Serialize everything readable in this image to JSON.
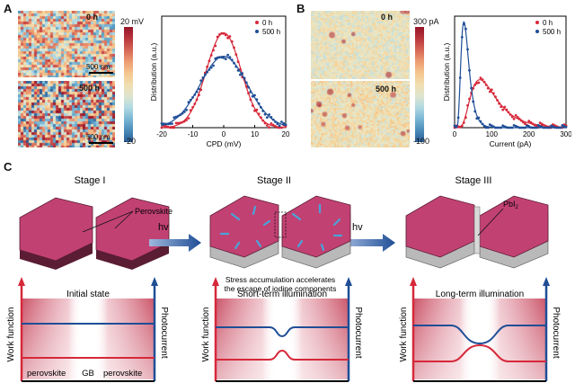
{
  "panels": {
    "a": "A",
    "b": "B",
    "c": "C"
  },
  "panelA": {
    "map_top_time": "0 h",
    "map_bottom_time": "500 h",
    "scalebar_top": "500 nm",
    "scalebar_bottom": "500 nm",
    "colorbar_max": "20 mV",
    "colorbar_min": "-20"
  },
  "panelB": {
    "map_top_time": "0 h",
    "map_bottom_time": "500 h",
    "colorbar_max": "300 pA",
    "colorbar_min": "-100"
  },
  "colors": {
    "red": "#d62839",
    "blue": "#1f4e96",
    "hex_top": "#c24173",
    "hex_side": "#5a1d33",
    "hex_base": "#b9b9b9"
  },
  "chart_data": [
    {
      "type": "scatter",
      "xlabel": "CPD (mV)",
      "ylabel": "Distribution (a.u.)",
      "xlim": [
        -20,
        20
      ],
      "ylim": [
        0,
        1
      ],
      "xticks": [
        "-20",
        "-10",
        "0",
        "10",
        "20"
      ],
      "legend_position": "top-right",
      "series": [
        {
          "name": "0 h",
          "color": "#d62839",
          "fit": "gaussian",
          "mean": 0,
          "sigma": 5.6,
          "amplitude": 0.85
        },
        {
          "name": "500 h",
          "color": "#1f4e96",
          "fit": "gaussian",
          "mean": 0,
          "sigma": 7.6,
          "amplitude": 0.64
        }
      ]
    },
    {
      "type": "scatter",
      "xlabel": "Current (pA)",
      "ylabel": "Distribution (a.u.)",
      "xlim": [
        0,
        300
      ],
      "ylim": [
        0,
        1
      ],
      "xticks": [
        "0",
        "100",
        "200",
        "300"
      ],
      "legend_position": "top-right",
      "series": [
        {
          "name": "0 h",
          "color": "#d62839",
          "fit": "lognormal",
          "mode": 68,
          "sigma": 0.5,
          "amplitude": 0.43
        },
        {
          "name": "500 h",
          "color": "#1f4e96",
          "fit": "lognormal",
          "mode": 25,
          "sigma": 0.42,
          "amplitude": 0.95
        }
      ]
    }
  ],
  "panelC": {
    "stage1": "Stage I",
    "stage2": "Stage II",
    "stage3": "Stage III",
    "perovskite_label": "Perovskite",
    "pbi2_label": "PbI",
    "pbi2_sub": "2",
    "hv1": "hv",
    "hv2": "hv",
    "stress_line1": "Stress accumulation accelerates",
    "stress_line2": "the escape of iodine components",
    "box1_title": "Initial state",
    "box2_title": "Short-term illumination",
    "box3_title": "Long-term illumination",
    "work_function": "Work function",
    "photocurrent": "Photocurrent",
    "bottom_labels": [
      "perovskite",
      "GB",
      "perovskite"
    ]
  }
}
